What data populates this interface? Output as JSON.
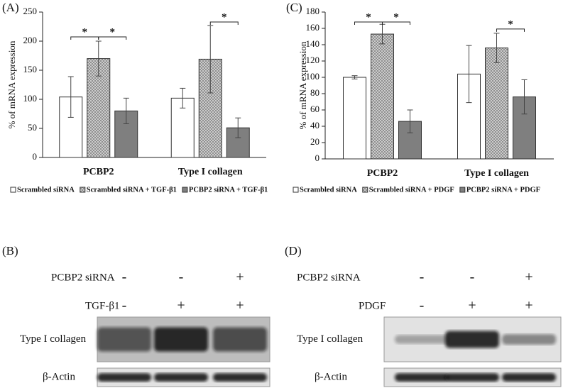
{
  "chart_data": [
    {
      "type": "bar",
      "panel_label": "(A)",
      "y_label": "% of mRNA expression",
      "categories": [
        "PCBP2",
        "Type I collagen"
      ],
      "series": [
        {
          "name": "Scrambled siRNA",
          "color": "#ffffff",
          "values": [
            104,
            102
          ],
          "errors": [
            35,
            17
          ]
        },
        {
          "name": "Scrambled siRNA + TGF-β1",
          "color": "#c8c8c8",
          "fill_pattern": "crosshatch",
          "values": [
            170,
            169
          ],
          "errors": [
            30,
            58
          ]
        },
        {
          "name": "PCBP2 siRNA + TGF-β1",
          "color": "#7f7f7f",
          "values": [
            80,
            51
          ],
          "errors": [
            22,
            17
          ]
        }
      ],
      "ylim": [
        0,
        250
      ],
      "yticks": [
        0,
        50,
        100,
        150,
        200,
        250
      ],
      "annotations": [
        {
          "text": "*",
          "category": "PCBP2",
          "between": [
            "Scrambled siRNA",
            "Scrambled siRNA + TGF-β1"
          ]
        },
        {
          "text": "*",
          "category": "PCBP2",
          "between": [
            "Scrambled siRNA + TGF-β1",
            "PCBP2 siRNA + TGF-β1"
          ]
        },
        {
          "text": "*",
          "category": "Type I collagen",
          "between": [
            "Scrambled siRNA + TGF-β1",
            "PCBP2 siRNA + TGF-β1"
          ]
        }
      ]
    },
    {
      "type": "bar",
      "panel_label": "(C)",
      "y_label": "% of mRNA expression",
      "categories": [
        "PCBP2",
        "Type I collagen"
      ],
      "series": [
        {
          "name": "Scrambled siRNA",
          "color": "#ffffff",
          "values": [
            100,
            104
          ],
          "errors": [
            2,
            35
          ]
        },
        {
          "name": "Scrambled siRNA + PDGF",
          "color": "#c8c8c8",
          "fill_pattern": "crosshatch",
          "values": [
            153,
            136
          ],
          "errors": [
            12,
            18
          ]
        },
        {
          "name": "PCBP2 siRNA + PDGF",
          "color": "#7f7f7f",
          "values": [
            46,
            76
          ],
          "errors": [
            14,
            21
          ]
        }
      ],
      "ylim": [
        0,
        180
      ],
      "yticks": [
        0,
        20,
        40,
        60,
        80,
        100,
        120,
        140,
        160,
        180
      ],
      "annotations": [
        {
          "text": "*",
          "category": "PCBP2",
          "between": [
            "Scrambled siRNA",
            "Scrambled siRNA + PDGF"
          ]
        },
        {
          "text": "*",
          "category": "PCBP2",
          "between": [
            "Scrambled siRNA + PDGF",
            "PCBP2 siRNA + PDGF"
          ]
        },
        {
          "text": "*",
          "category": "Type I collagen",
          "between": [
            "Scrambled siRNA + PDGF",
            "PCBP2 siRNA + PDGF"
          ]
        }
      ]
    }
  ],
  "blots": [
    {
      "panel_label": "(B)",
      "conditions": [
        {
          "name": "PCBP2 siRNA",
          "signs": [
            "-",
            "-",
            "+"
          ]
        },
        {
          "name": "TGF-β1",
          "signs": [
            "-",
            "+",
            "+"
          ]
        }
      ],
      "bands": [
        "Type I collagen",
        "β-Actin"
      ]
    },
    {
      "panel_label": "(D)",
      "conditions": [
        {
          "name": "PCBP2 siRNA",
          "signs": [
            "-",
            "-",
            "+"
          ]
        },
        {
          "name": "PDGF",
          "signs": [
            "-",
            "+",
            "+"
          ]
        }
      ],
      "bands": [
        "Type I collagen",
        "β-Actin"
      ]
    }
  ]
}
